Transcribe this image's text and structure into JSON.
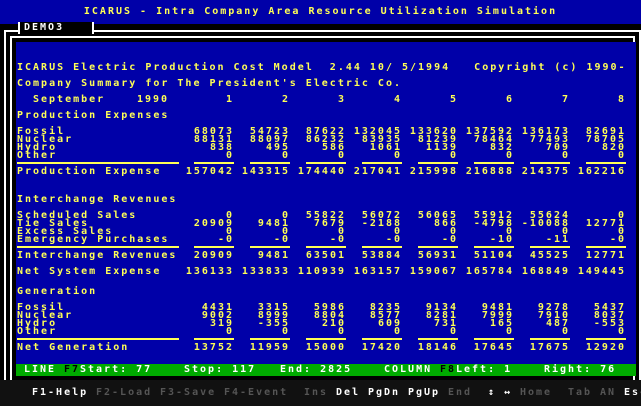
{
  "app_title": "ICARUS - Intra Company Area Resource Utilization Simulation",
  "window_tab": "DEMO3",
  "header": {
    "line1": "ICARUS Electric Production Cost Model  2.44 10/ 5/1994   Copyright (c) 1990-",
    "line2": "Company Summary for The President's Electric Co.",
    "month": "September",
    "year": "1990",
    "columns": [
      "1",
      "2",
      "3",
      "4",
      "5",
      "6",
      "7",
      "8"
    ]
  },
  "sections": [
    {
      "title": "Production Expenses",
      "rows": [
        {
          "label": "Fossil",
          "values": [
            "68073",
            "54723",
            "87622",
            "132045",
            "133620",
            "137592",
            "136173",
            "82691"
          ]
        },
        {
          "label": "Nuclear",
          "values": [
            "88131",
            "88097",
            "86232",
            "83935",
            "81239",
            "78464",
            "77493",
            "78705"
          ]
        },
        {
          "label": "Hydro",
          "values": [
            "838",
            "495",
            "586",
            "1061",
            "1139",
            "832",
            "709",
            "820"
          ]
        },
        {
          "label": "Other",
          "values": [
            "0",
            "0",
            "0",
            "0",
            "0",
            "0",
            "0",
            "0"
          ]
        }
      ],
      "total": {
        "label": "Production Expense",
        "values": [
          "157042",
          "143315",
          "174440",
          "217041",
          "215998",
          "216888",
          "214375",
          "162216"
        ]
      }
    },
    {
      "title": "Interchange Revenues",
      "rows": [
        {
          "label": "Scheduled Sales",
          "values": [
            "0",
            "0",
            "55822",
            "56072",
            "56065",
            "55912",
            "55624",
            "0"
          ]
        },
        {
          "label": "Tie Sales",
          "values": [
            "20909",
            "9481",
            "7679",
            "-2188",
            "866",
            "-4798",
            "-10088",
            "12771"
          ]
        },
        {
          "label": "Excess Sales",
          "values": [
            "0",
            "0",
            "0",
            "0",
            "0",
            "0",
            "0",
            "0"
          ]
        },
        {
          "label": "Emergency Purchases",
          "values": [
            "-0",
            "-0",
            "-0",
            "-0",
            "-0",
            "-10",
            "-11",
            "-0"
          ]
        }
      ],
      "total": {
        "label": "Interchange Revenues",
        "values": [
          "20909",
          "9481",
          "63501",
          "53884",
          "56931",
          "51104",
          "45525",
          "12771"
        ]
      },
      "extra": {
        "label": "Net System Expense",
        "values": [
          "136133",
          "133833",
          "110939",
          "163157",
          "159067",
          "165784",
          "168849",
          "149445"
        ]
      }
    },
    {
      "title": "Generation",
      "rows": [
        {
          "label": "Fossil",
          "values": [
            "4431",
            "3315",
            "5986",
            "8235",
            "9134",
            "9481",
            "9278",
            "5437"
          ]
        },
        {
          "label": "Nuclear",
          "values": [
            "9002",
            "8999",
            "8804",
            "8577",
            "8281",
            "7999",
            "7910",
            "8037"
          ]
        },
        {
          "label": "Hydro",
          "values": [
            "319",
            "-355",
            "210",
            "609",
            "731",
            "165",
            "487",
            "-553"
          ]
        },
        {
          "label": "Other",
          "values": [
            "0",
            "0",
            "0",
            "0",
            "0",
            "0",
            "0",
            "0"
          ]
        }
      ],
      "total": {
        "label": "Net Generation",
        "values": [
          "13752",
          "11959",
          "15000",
          "17420",
          "18146",
          "17645",
          "17675",
          "12920"
        ]
      }
    }
  ],
  "status": {
    "line_label": "LINE",
    "f7": "F7",
    "start": "Start: 77",
    "stop": "Stop: 117",
    "end": "End: 2825",
    "column_label": "COLUMN",
    "f8": "F8",
    "left": "Left: 1",
    "right": "Right: 76"
  },
  "footer": [
    {
      "label": "F1-Help",
      "enabled": true
    },
    {
      "label": "F2-Load",
      "enabled": false
    },
    {
      "label": "F3-Save",
      "enabled": false
    },
    {
      "label": "F4-Event",
      "enabled": false
    },
    {
      "label": "Ins",
      "enabled": false
    },
    {
      "label": "Del",
      "enabled": true
    },
    {
      "label": "PgDn",
      "enabled": true
    },
    {
      "label": "PgUp",
      "enabled": true
    },
    {
      "label": "End",
      "enabled": false
    },
    {
      "label": "↕",
      "enabled": true
    },
    {
      "label": "↔",
      "enabled": true
    },
    {
      "label": "Home",
      "enabled": false
    },
    {
      "label": "Tab",
      "enabled": false
    },
    {
      "label": "AN",
      "enabled": false
    },
    {
      "label": "Esc",
      "enabled": true
    }
  ],
  "colors": {
    "screen": "#0000a8",
    "text": "#ffff55",
    "status_bar": "#00aa00"
  }
}
